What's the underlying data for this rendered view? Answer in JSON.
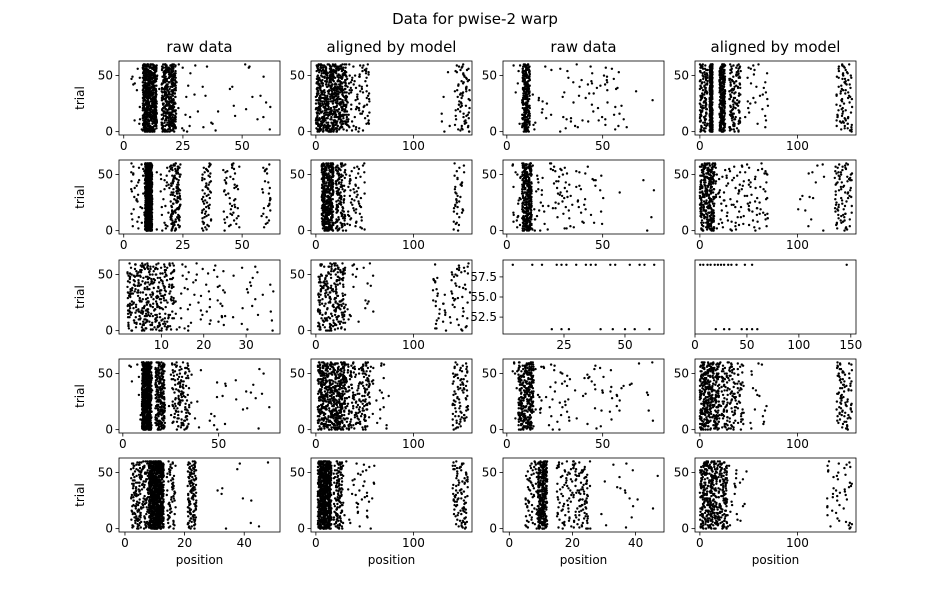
{
  "figure": {
    "suptitle": "Data for pwise-2 warp",
    "column_titles": [
      "raw data",
      "aligned by model",
      "raw data",
      "aligned by model"
    ],
    "row_ylabel": "trial",
    "col_xlabel": "position"
  },
  "chart_data": {
    "type": "scatter",
    "grid": false,
    "marker_color": "#000000",
    "rows": 5,
    "cols": 4,
    "panels": [
      {
        "row": 0,
        "col": 0,
        "xlim": [
          -2,
          66
        ],
        "ylim": [
          -3,
          63
        ],
        "xticks": [
          0,
          25,
          50
        ],
        "yticks": [
          0,
          50
        ],
        "mode": "bands",
        "bands": [
          [
            8,
            14,
            10
          ],
          [
            16,
            22,
            6
          ],
          [
            3,
            36,
            0.8
          ],
          [
            36,
            62,
            0.25
          ]
        ]
      },
      {
        "row": 0,
        "col": 1,
        "xlim": [
          -5,
          160
        ],
        "ylim": [
          -3,
          63
        ],
        "xticks": [
          0,
          100
        ],
        "yticks": [
          0,
          50
        ],
        "mode": "bands",
        "bands": [
          [
            0,
            32,
            11
          ],
          [
            32,
            55,
            1.5
          ],
          [
            125,
            140,
            0.05
          ],
          [
            142,
            158,
            1.2
          ]
        ]
      },
      {
        "row": 0,
        "col": 2,
        "xlim": [
          -2,
          82
        ],
        "ylim": [
          -3,
          63
        ],
        "xticks": [
          0,
          50
        ],
        "yticks": [
          0,
          50
        ],
        "mode": "bands",
        "bands": [
          [
            8,
            12,
            4
          ],
          [
            3,
            60,
            1.3
          ],
          [
            60,
            78,
            0.1
          ]
        ]
      },
      {
        "row": 0,
        "col": 3,
        "xlim": [
          -5,
          160
        ],
        "ylim": [
          -3,
          63
        ],
        "xticks": [
          0,
          100
        ],
        "yticks": [
          0,
          50
        ],
        "mode": "bands",
        "bands": [
          [
            0,
            8,
            2
          ],
          [
            10,
            13,
            5
          ],
          [
            20,
            26,
            4
          ],
          [
            30,
            42,
            2
          ],
          [
            44,
            70,
            0.4
          ],
          [
            140,
            156,
            1.4
          ]
        ]
      },
      {
        "row": 1,
        "col": 0,
        "xlim": [
          -2,
          66
        ],
        "ylim": [
          -3,
          63
        ],
        "xticks": [
          0,
          25,
          50
        ],
        "yticks": [
          0,
          50
        ],
        "mode": "bands",
        "bands": [
          [
            9,
            12,
            12
          ],
          [
            3,
            9,
            0.6
          ],
          [
            13,
            20,
            0.5
          ],
          [
            20,
            24,
            2
          ],
          [
            33,
            37,
            1
          ],
          [
            42,
            49,
            0.8
          ],
          [
            58,
            62,
            0.4
          ]
        ]
      },
      {
        "row": 1,
        "col": 1,
        "xlim": [
          -5,
          160
        ],
        "ylim": [
          -3,
          63
        ],
        "xticks": [
          0,
          100
        ],
        "yticks": [
          0,
          50
        ],
        "mode": "bands",
        "bands": [
          [
            6,
            18,
            7
          ],
          [
            20,
            30,
            2
          ],
          [
            30,
            50,
            1
          ],
          [
            140,
            152,
            0.6
          ]
        ]
      },
      {
        "row": 1,
        "col": 2,
        "xlim": [
          -2,
          82
        ],
        "ylim": [
          -3,
          63
        ],
        "xticks": [
          0,
          50
        ],
        "yticks": [
          0,
          50
        ],
        "mode": "bands",
        "bands": [
          [
            8,
            13,
            5
          ],
          [
            3,
            50,
            2
          ],
          [
            50,
            78,
            0.2
          ]
        ]
      },
      {
        "row": 1,
        "col": 3,
        "xlim": [
          -5,
          160
        ],
        "ylim": [
          -3,
          63
        ],
        "xticks": [
          0,
          100
        ],
        "yticks": [
          0,
          50
        ],
        "mode": "bands",
        "bands": [
          [
            0,
            15,
            5
          ],
          [
            15,
            70,
            2
          ],
          [
            100,
            130,
            0.2
          ],
          [
            138,
            156,
            1.4
          ]
        ]
      },
      {
        "row": 2,
        "col": 0,
        "xlim": [
          0,
          38
        ],
        "ylim": [
          -3,
          63
        ],
        "xticks": [
          10,
          20,
          30
        ],
        "yticks": [
          0,
          50
        ],
        "mode": "bands",
        "bands": [
          [
            2,
            13,
            6
          ],
          [
            13,
            25,
            0.9
          ],
          [
            25,
            37,
            0.3
          ]
        ]
      },
      {
        "row": 2,
        "col": 1,
        "xlim": [
          -5,
          160
        ],
        "ylim": [
          -3,
          63
        ],
        "xticks": [
          0,
          100
        ],
        "yticks": [
          0,
          50
        ],
        "mode": "bands",
        "bands": [
          [
            2,
            30,
            4
          ],
          [
            30,
            60,
            0.3
          ],
          [
            120,
            158,
            1.3
          ]
        ]
      },
      {
        "row": 2,
        "col": 2,
        "xlim": [
          0,
          66
        ],
        "ylim": [
          50.4,
          59.6
        ],
        "xticks": [
          25,
          50
        ],
        "yticks": [
          52.5,
          55.0,
          57.5
        ],
        "ytick_labels": [
          "52.5",
          "55.0",
          "57.5"
        ],
        "mode": "two_trials",
        "trial_ys": [
          51,
          59
        ],
        "xs_low": [
          20,
          24,
          27,
          40,
          45,
          50,
          54,
          60
        ],
        "xs_high": [
          4,
          12,
          16,
          22,
          24,
          26,
          30,
          34,
          36,
          38,
          44,
          46,
          52,
          56,
          58,
          62
        ]
      },
      {
        "row": 2,
        "col": 3,
        "xlim": [
          0,
          155
        ],
        "ylim": [
          50.4,
          59.6
        ],
        "xticks": [
          50,
          100,
          150
        ],
        "xt_extra": [
          0
        ],
        "mode": "two_trials",
        "trial_ys": [
          51,
          59
        ],
        "xs_low": [
          20,
          28,
          33,
          45,
          50,
          55,
          60
        ],
        "xs_high": [
          5,
          8,
          12,
          15,
          19,
          22,
          25,
          28,
          32,
          35,
          40,
          48,
          55,
          146
        ]
      },
      {
        "row": 3,
        "col": 0,
        "xlim": [
          -2,
          82
        ],
        "ylim": [
          -3,
          63
        ],
        "xticks": [
          0,
          50
        ],
        "yticks": [
          0,
          50
        ],
        "mode": "bands",
        "bands": [
          [
            10,
            15,
            11
          ],
          [
            17,
            22,
            4
          ],
          [
            25,
            35,
            2
          ],
          [
            3,
            79,
            0.9
          ]
        ]
      },
      {
        "row": 3,
        "col": 1,
        "xlim": [
          -5,
          160
        ],
        "ylim": [
          -3,
          63
        ],
        "xticks": [
          0,
          100
        ],
        "yticks": [
          0,
          50
        ],
        "mode": "bands",
        "bands": [
          [
            2,
            30,
            9
          ],
          [
            30,
            55,
            3
          ],
          [
            55,
            75,
            0.4
          ],
          [
            140,
            156,
            1.4
          ]
        ]
      },
      {
        "row": 3,
        "col": 2,
        "xlim": [
          -2,
          82
        ],
        "ylim": [
          -3,
          63
        ],
        "xticks": [
          0,
          50
        ],
        "yticks": [
          0,
          50
        ],
        "mode": "bands",
        "bands": [
          [
            6,
            14,
            5
          ],
          [
            3,
            60,
            1.5
          ],
          [
            60,
            78,
            0.15
          ]
        ]
      },
      {
        "row": 3,
        "col": 3,
        "xlim": [
          -5,
          160
        ],
        "ylim": [
          -3,
          63
        ],
        "xticks": [
          0,
          100
        ],
        "yticks": [
          0,
          50
        ],
        "mode": "bands",
        "bands": [
          [
            0,
            20,
            6
          ],
          [
            20,
            45,
            2.5
          ],
          [
            45,
            70,
            0.3
          ],
          [
            140,
            156,
            1.4
          ]
        ]
      },
      {
        "row": 4,
        "col": 0,
        "xlim": [
          -2,
          52
        ],
        "ylim": [
          -3,
          63
        ],
        "xticks": [
          0,
          20,
          40
        ],
        "yticks": [
          0,
          50
        ],
        "mode": "bands",
        "bands": [
          [
            2,
            8,
            3
          ],
          [
            8,
            13,
            15
          ],
          [
            14,
            17,
            1
          ],
          [
            21,
            24,
            2
          ],
          [
            27,
            50,
            0.15
          ]
        ]
      },
      {
        "row": 4,
        "col": 1,
        "xlim": [
          -5,
          160
        ],
        "ylim": [
          -3,
          63
        ],
        "xticks": [
          0,
          100
        ],
        "yticks": [
          0,
          50
        ],
        "mode": "bands",
        "bands": [
          [
            2,
            16,
            12
          ],
          [
            18,
            28,
            2
          ],
          [
            28,
            60,
            0.6
          ],
          [
            140,
            156,
            1.6
          ]
        ]
      },
      {
        "row": 4,
        "col": 2,
        "xlim": [
          -2,
          49
        ],
        "ylim": [
          -3,
          63
        ],
        "xticks": [
          0,
          20,
          40
        ],
        "yticks": [
          0,
          50
        ],
        "mode": "bands",
        "bands": [
          [
            5,
            9,
            1
          ],
          [
            9,
            12,
            5
          ],
          [
            15,
            20,
            1
          ],
          [
            20,
            25,
            1.5
          ],
          [
            25,
            47,
            0.3
          ]
        ]
      },
      {
        "row": 4,
        "col": 3,
        "xlim": [
          -5,
          160
        ],
        "ylim": [
          -3,
          63
        ],
        "xticks": [
          0,
          100
        ],
        "yticks": [
          0,
          50
        ],
        "mode": "bands",
        "bands": [
          [
            0,
            18,
            5
          ],
          [
            18,
            28,
            2
          ],
          [
            28,
            50,
            0.3
          ],
          [
            130,
            156,
            0.8
          ]
        ]
      }
    ]
  }
}
